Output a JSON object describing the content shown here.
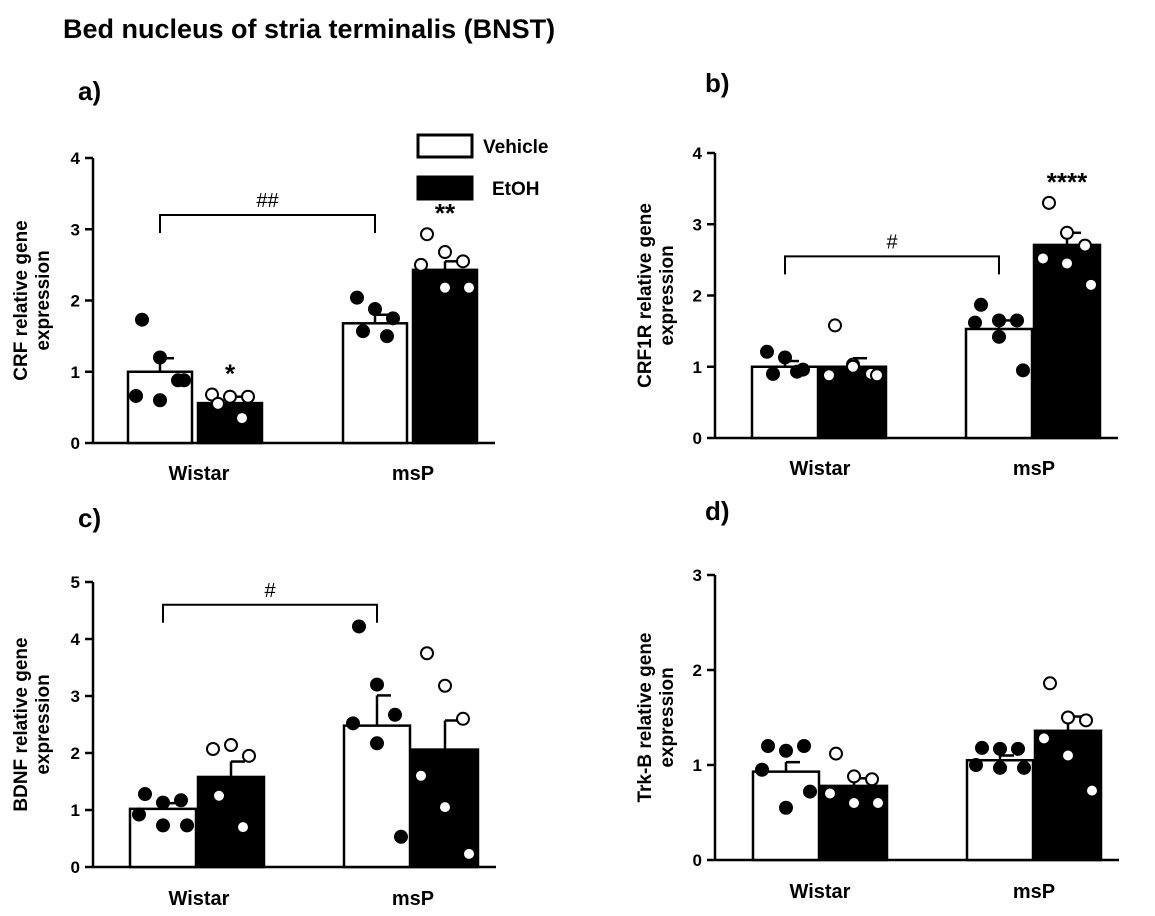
{
  "figure_title": "Bed nucleus of stria terminalis (BNST)",
  "legend": {
    "vehicle_label": "Vehicle",
    "etoh_label": "EtOH"
  },
  "colors": {
    "vehicle_fill": "#ffffff",
    "etoh_fill": "#000000",
    "stroke": "#000000"
  },
  "chart_data": [
    {
      "type": "bar",
      "panel_label": "a)",
      "ylabel": [
        "CRF relative gene",
        "expression"
      ],
      "ylim": [
        0,
        4
      ],
      "yticks": [
        "0",
        "1",
        "2",
        "3",
        "4"
      ],
      "categories": [
        "Wistar",
        "msP"
      ],
      "series": [
        {
          "name": "Vehicle",
          "values": [
            1.0,
            1.68
          ],
          "sem": [
            0.19,
            0.12
          ],
          "points": [
            [
              1.73,
              1.2,
              0.88,
              0.66,
              0.6,
              0.88
            ],
            [
              2.04,
              1.88,
              1.75,
              1.57,
              1.5
            ]
          ],
          "marks": [
            "",
            ""
          ]
        },
        {
          "name": "EtOH",
          "values": [
            0.56,
            2.43
          ],
          "sem": [
            0.09,
            0.12
          ],
          "points": [
            [
              0.68,
              0.65,
              0.65,
              0.55,
              0.35
            ],
            [
              2.93,
              2.68,
              2.55,
              2.5,
              2.18,
              2.18
            ]
          ],
          "marks": [
            "*",
            "**"
          ]
        }
      ],
      "comparisons": [
        {
          "label": "##",
          "y": 3.2
        }
      ]
    },
    {
      "type": "bar",
      "panel_label": "b)",
      "ylabel": [
        "CRF1R relative gene",
        "expression"
      ],
      "ylim": [
        0,
        4
      ],
      "yticks": [
        "0",
        "1",
        "2",
        "3",
        "4"
      ],
      "categories": [
        "Wistar",
        "msP"
      ],
      "series": [
        {
          "name": "Vehicle",
          "values": [
            1.0,
            1.53
          ],
          "sem": [
            0.08,
            0.12
          ],
          "points": [
            [
              1.21,
              1.13,
              0.96,
              0.9,
              0.93
            ],
            [
              1.87,
              1.65,
              1.65,
              1.62,
              1.42,
              0.95
            ]
          ],
          "marks": [
            "",
            ""
          ]
        },
        {
          "name": "EtOH",
          "values": [
            1.0,
            2.71
          ],
          "sem": [
            0.12,
            0.17
          ],
          "points": [
            [
              1.58,
              1.03,
              0.9,
              0.88,
              1.0,
              0.88
            ],
            [
              3.3,
              2.88,
              2.7,
              2.52,
              2.45,
              2.15
            ]
          ],
          "marks": [
            "",
            "****"
          ]
        }
      ],
      "comparisons": [
        {
          "label": "#",
          "y": 2.55
        }
      ]
    },
    {
      "type": "bar",
      "panel_label": "c)",
      "ylabel": [
        "BDNF relative gene",
        "expression"
      ],
      "ylim": [
        0,
        5
      ],
      "yticks": [
        "0",
        "1",
        "2",
        "3",
        "4",
        "5"
      ],
      "categories": [
        "Wistar",
        "msP"
      ],
      "series": [
        {
          "name": "Vehicle",
          "values": [
            1.02,
            2.48
          ],
          "sem": [
            0.1,
            0.53
          ],
          "points": [
            [
              1.28,
              1.13,
              1.17,
              0.92,
              0.73,
              0.73
            ],
            [
              4.22,
              3.2,
              2.67,
              2.52,
              2.17,
              0.53
            ]
          ],
          "marks": [
            "",
            ""
          ]
        },
        {
          "name": "EtOH",
          "values": [
            1.58,
            2.06
          ],
          "sem": [
            0.27,
            0.51
          ],
          "points": [
            [
              2.07,
              2.14,
              1.95,
              1.25,
              0.7
            ],
            [
              3.75,
              3.18,
              2.6,
              1.6,
              1.05,
              0.23
            ]
          ],
          "marks": [
            "",
            ""
          ]
        }
      ],
      "comparisons": [
        {
          "label": "#",
          "y": 4.6
        }
      ]
    },
    {
      "type": "bar",
      "panel_label": "d)",
      "ylabel": [
        "Trk-B relative gene",
        "expression"
      ],
      "ylim": [
        0,
        3
      ],
      "yticks": [
        "0",
        "1",
        "2",
        "3"
      ],
      "categories": [
        "Wistar",
        "msP"
      ],
      "series": [
        {
          "name": "Vehicle",
          "values": [
            0.93,
            1.05
          ],
          "sem": [
            0.1,
            0.05
          ],
          "points": [
            [
              1.2,
              1.15,
              1.2,
              0.95,
              0.55,
              0.72
            ],
            [
              1.18,
              1.17,
              1.17,
              1.0,
              0.97,
              0.97
            ]
          ],
          "marks": [
            "",
            ""
          ]
        },
        {
          "name": "EtOH",
          "values": [
            0.78,
            1.36
          ],
          "sem": [
            0.08,
            0.15
          ],
          "points": [
            [
              1.12,
              0.88,
              0.85,
              0.7,
              0.6,
              0.6
            ],
            [
              1.86,
              1.5,
              1.47,
              1.28,
              1.1,
              0.73
            ]
          ],
          "marks": [
            "",
            ""
          ]
        }
      ],
      "comparisons": []
    }
  ]
}
